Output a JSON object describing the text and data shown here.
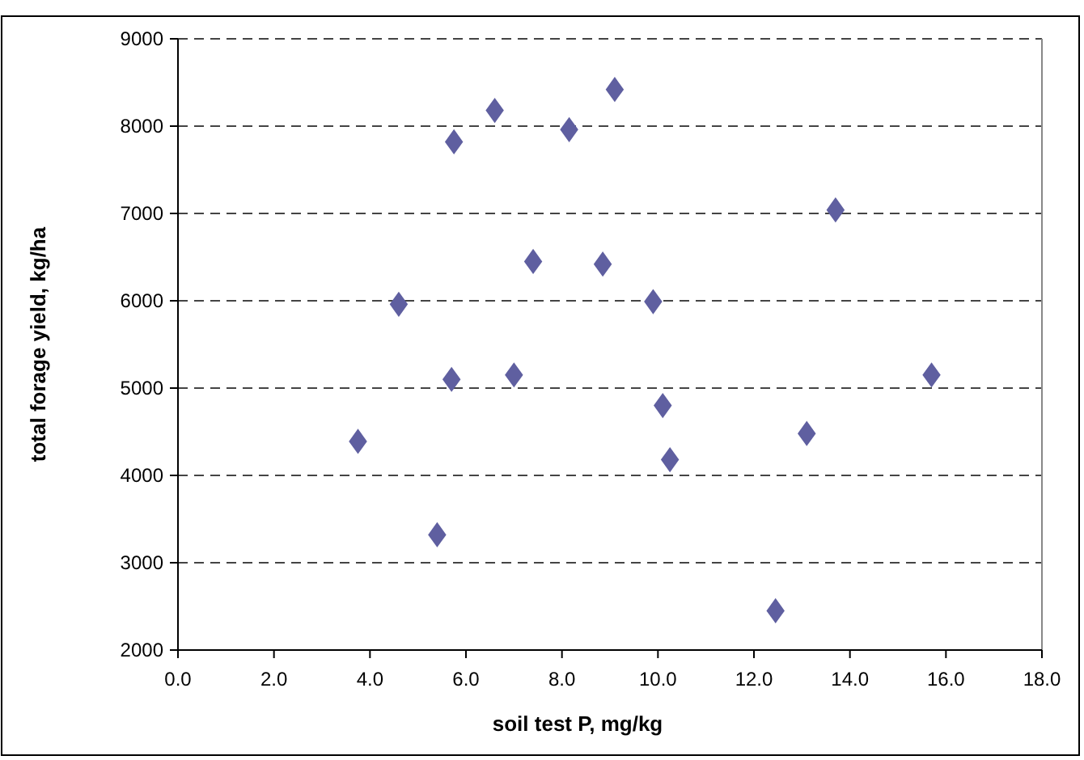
{
  "chart_data": {
    "type": "scatter",
    "xlabel": "soil test P, mg/kg",
    "ylabel": "total forage yield, kg/ha",
    "x": [
      3.75,
      4.6,
      5.4,
      5.7,
      5.75,
      6.6,
      7.0,
      7.4,
      8.15,
      8.85,
      9.1,
      9.9,
      10.1,
      10.25,
      12.45,
      13.1,
      13.7,
      15.7
    ],
    "series": [
      {
        "color": "#5f5fa0",
        "values": [
          4390,
          5960,
          3320,
          5100,
          7820,
          8180,
          5150,
          6450,
          7960,
          6420,
          8420,
          5990,
          4800,
          4180,
          2450,
          4480,
          7040,
          5150
        ]
      }
    ],
    "xlim": [
      0,
      18
    ],
    "xticks": [
      {
        "value": 0,
        "label": "0.0"
      },
      {
        "value": 2,
        "label": "2.0"
      },
      {
        "value": 4,
        "label": "4.0"
      },
      {
        "value": 6,
        "label": "6.0"
      },
      {
        "value": 8,
        "label": "8.0"
      },
      {
        "value": 10,
        "label": "10.0"
      },
      {
        "value": 12,
        "label": "12.0"
      },
      {
        "value": 14,
        "label": "14.0"
      },
      {
        "value": 16,
        "label": "16.0"
      },
      {
        "value": 18,
        "label": "18.0"
      }
    ],
    "ylim": [
      2000,
      9000
    ],
    "yticks": [
      2000,
      3000,
      4000,
      5000,
      6000,
      7000,
      8000,
      9000
    ],
    "grid": "y",
    "marker": "diamond"
  }
}
